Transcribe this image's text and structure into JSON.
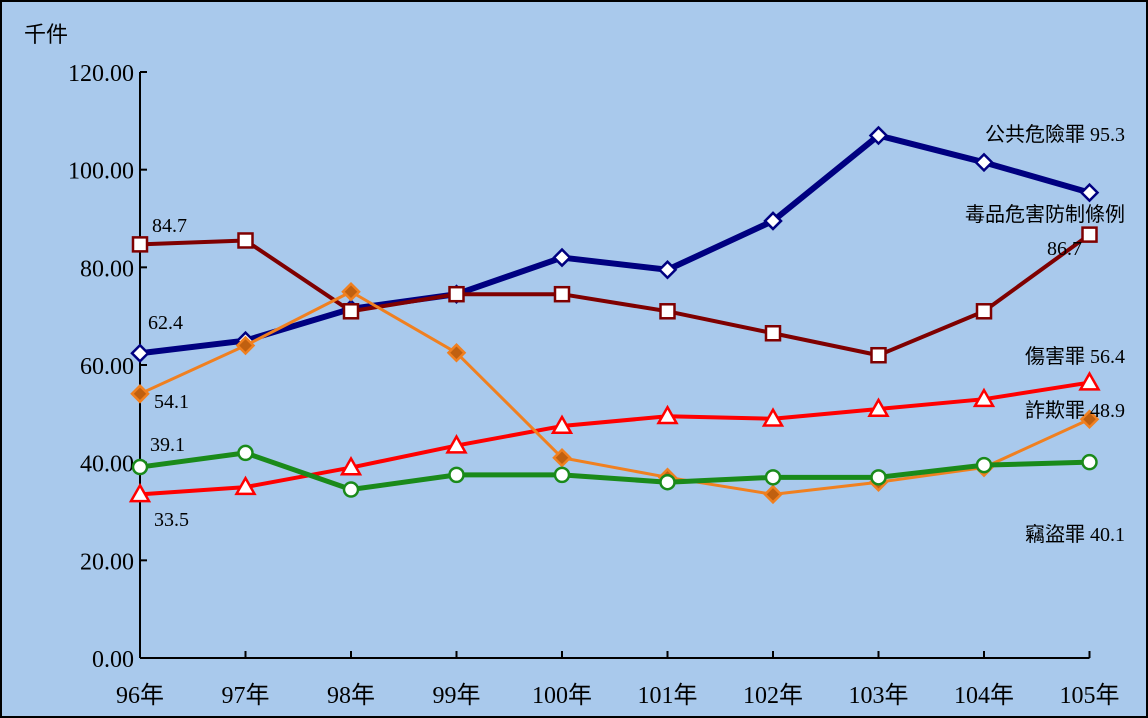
{
  "chart_data": {
    "type": "line",
    "y_unit_label": "千件",
    "categories": [
      "96年",
      "97年",
      "98年",
      "99年",
      "100年",
      "101年",
      "102年",
      "103年",
      "104年",
      "105年"
    ],
    "ylim": [
      0,
      120
    ],
    "y_ticks": [
      0,
      20,
      40,
      60,
      80,
      100,
      120
    ],
    "y_tick_labels": [
      "0.00",
      "20.00",
      "40.00",
      "60.00",
      "80.00",
      "100.00",
      "120.00"
    ],
    "grid": false,
    "series": [
      {
        "key": "public_danger",
        "name": "公共危險罪",
        "color": "#000080",
        "marker": "diamond",
        "marker_fill": "#ffffff",
        "line_width": 6,
        "values": [
          62.4,
          65.0,
          71.5,
          74.5,
          82.0,
          79.5,
          89.5,
          107.0,
          101.5,
          95.3
        ]
      },
      {
        "key": "drug",
        "name": "毒品危害防制條例",
        "color": "#7f0000",
        "marker": "square",
        "marker_fill": "#ffffff",
        "line_width": 4,
        "values": [
          84.7,
          85.5,
          71.0,
          74.5,
          74.5,
          71.0,
          66.5,
          62.0,
          71.0,
          86.7
        ]
      },
      {
        "key": "injury",
        "name": "傷害罪",
        "color": "#ff0000",
        "marker": "triangle",
        "marker_fill": "#ffffff",
        "line_width": 4,
        "values": [
          33.5,
          35.0,
          39.0,
          43.5,
          47.5,
          49.5,
          49.0,
          51.0,
          53.0,
          56.4
        ]
      },
      {
        "key": "fraud",
        "name": "詐欺罪",
        "color": "#f08020",
        "marker": "diamond",
        "marker_fill": "#c06010",
        "line_width": 3,
        "values": [
          54.1,
          64.0,
          75.0,
          62.5,
          41.0,
          37.0,
          33.5,
          36.0,
          39.0,
          48.9
        ]
      },
      {
        "key": "theft",
        "name": "竊盜罪",
        "color": "#1a8a1a",
        "marker": "circle",
        "marker_fill": "#ffffff",
        "line_width": 5,
        "values": [
          39.1,
          42.0,
          34.5,
          37.5,
          37.5,
          36.0,
          37.0,
          37.0,
          39.5,
          40.1
        ]
      }
    ],
    "annotations": {
      "public_danger_end": "公共危險罪 95.3",
      "drug_end_name": "毒品危害防制條例",
      "drug_end_value": "86.7",
      "injury_end": "傷害罪 56.4",
      "fraud_end": "詐欺罪 48.9",
      "theft_end": "竊盜罪 40.1",
      "drug_start": "84.7",
      "public_danger_start": "62.4",
      "fraud_start": "54.1",
      "theft_start": "39.1",
      "injury_start": "33.5"
    }
  }
}
